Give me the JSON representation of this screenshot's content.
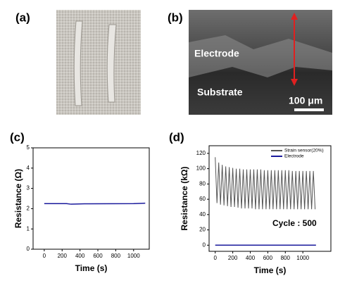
{
  "images": [
    {
      "label": "(a)"
    },
    {
      "label": "(b)",
      "annotations": [
        "Electrode",
        "Substrate",
        "100 μm"
      ]
    }
  ],
  "chart_data": [
    {
      "type": "line",
      "panel_label": "(c)",
      "xlabel": "Time (s)",
      "ylabel": "Resistance (Ω)",
      "xlim": [
        -125,
        1175
      ],
      "xticks": [
        0,
        200,
        400,
        600,
        800,
        1000
      ],
      "ylim": [
        0,
        5
      ],
      "yticks": [
        0,
        1,
        2,
        3,
        4,
        5
      ],
      "series": [
        {
          "color": "#1a1a9c",
          "x": [
            0,
            250,
            300,
            450,
            1000,
            1130
          ],
          "values": [
            2.25,
            2.25,
            2.22,
            2.24,
            2.25,
            2.27
          ]
        }
      ]
    },
    {
      "type": "line",
      "panel_label": "(d)",
      "xlabel": "Time (s)",
      "ylabel": "Resistance (kΩ)",
      "xlim": [
        -70,
        1320
      ],
      "xticks": [
        0,
        200,
        400,
        600,
        800,
        1000
      ],
      "ylim": [
        -8,
        130
      ],
      "yticks": [
        0,
        20,
        40,
        60,
        80,
        100,
        120
      ],
      "legend": "upper right",
      "annotation": "Cycle : 500",
      "series": [
        {
          "name": "Strain sensor(20%)",
          "color": "#555555",
          "x": [
            0,
            20,
            40,
            60,
            80,
            100,
            120,
            140,
            160,
            180,
            200,
            220,
            240,
            260,
            280,
            300,
            320,
            340,
            360,
            380,
            400,
            420,
            440,
            460,
            480,
            500,
            520,
            540,
            560,
            580,
            600,
            620,
            640,
            660,
            680,
            700,
            720,
            740,
            760,
            780,
            800,
            820,
            840,
            860,
            880,
            900,
            920,
            940,
            960,
            980,
            1000,
            1020,
            1040,
            1060,
            1080,
            1100,
            1120,
            1140
          ],
          "values": [
            115,
            55,
            108,
            53,
            105,
            52,
            103,
            51,
            102,
            50,
            101,
            50,
            100,
            49,
            100,
            48,
            99,
            48,
            99,
            48,
            99,
            48,
            99,
            47,
            99,
            47,
            99,
            47,
            98,
            47,
            98,
            47,
            98,
            47,
            98,
            47,
            98,
            47,
            98,
            47,
            98,
            47,
            98,
            47,
            97,
            47,
            97,
            47,
            97,
            47,
            97,
            47,
            97,
            47,
            97,
            47,
            97,
            47
          ]
        },
        {
          "name": "Electrode",
          "color": "#1a1a9c",
          "x": [
            0,
            1150
          ],
          "values": [
            0,
            0
          ]
        }
      ]
    }
  ]
}
